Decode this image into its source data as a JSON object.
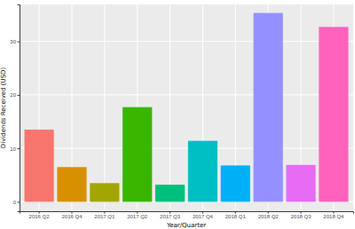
{
  "chart_data": {
    "type": "bar",
    "x_label": "Year/Quarter",
    "y_label": "Dividends Received (USD)",
    "categories": [
      "2016 Q2",
      "2016 Q4",
      "2017 Q1",
      "2017 Q2",
      "2017 Q3",
      "2017 Q4",
      "2018 Q1",
      "2018 Q2",
      "2018 Q3",
      "2018 Q4"
    ],
    "values": [
      13.5,
      6.5,
      3.5,
      17.7,
      3.2,
      11.4,
      6.8,
      35.3,
      6.9,
      32.7
    ],
    "colors": [
      "#F8766D",
      "#D89000",
      "#A3A500",
      "#39B600",
      "#00BF7D",
      "#00BFC4",
      "#00B0F6",
      "#9590FF",
      "#E76BF3",
      "#FF62BC"
    ],
    "ylim": [
      -1.76,
      36.9
    ],
    "yticks": [
      0,
      10,
      20,
      30
    ],
    "grid": true
  }
}
